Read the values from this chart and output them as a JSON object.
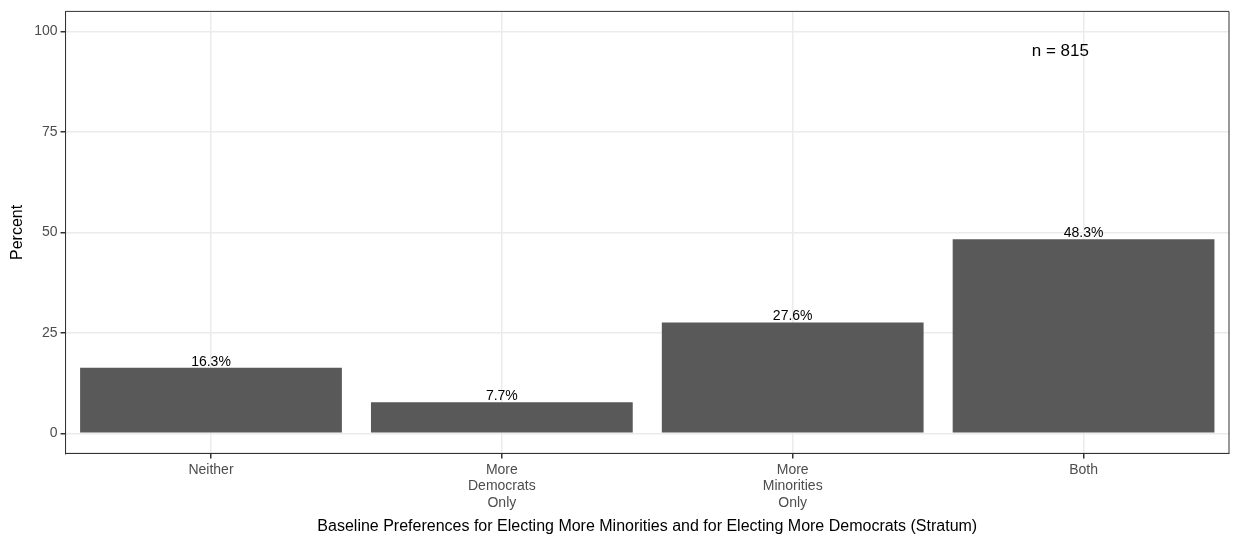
{
  "chart_data": {
    "type": "bar",
    "xlabel": "Baseline Preferences for Electing More Minorities and for Electing More Democrats (Stratum)",
    "ylabel": "Percent",
    "categories": [
      "Neither",
      "More Democrats Only",
      "More Minorities Only",
      "Both"
    ],
    "values": [
      16.3,
      7.7,
      27.6,
      48.3
    ],
    "value_labels": [
      "16.3%",
      "7.7%",
      "27.6%",
      "48.3%"
    ],
    "color": "#595959",
    "ylim": [
      -5,
      105
    ],
    "yticks": [
      0,
      25,
      50,
      75,
      100
    ],
    "grid": true,
    "annotations": [
      "n = 815"
    ]
  }
}
